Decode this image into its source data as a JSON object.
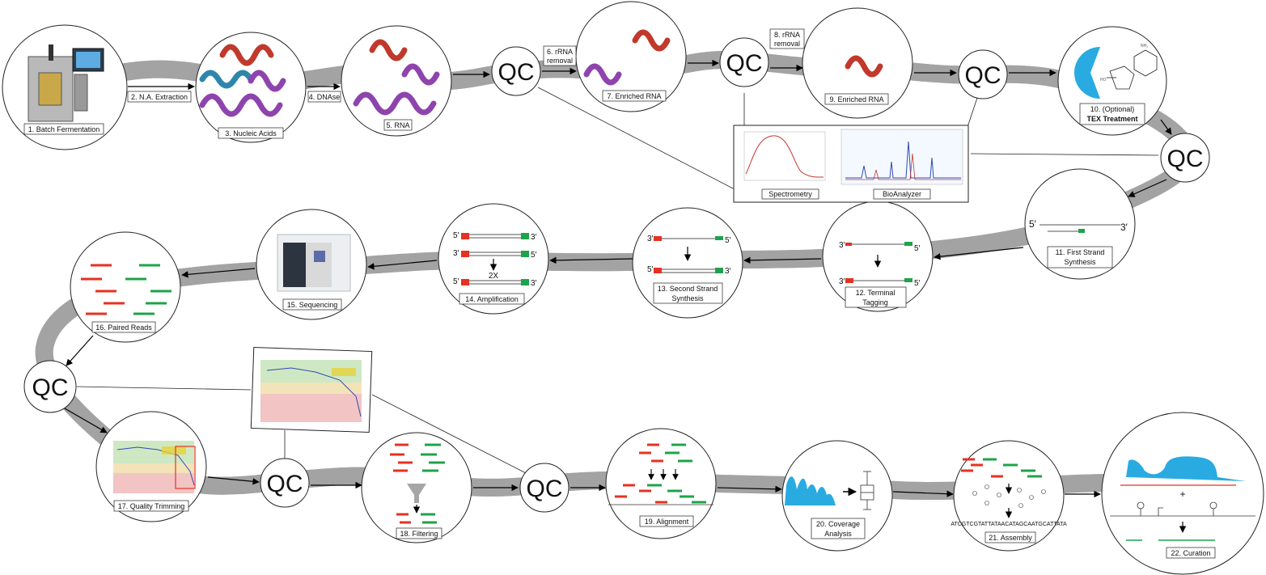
{
  "steps": {
    "s1": "1. Batch Fermentation",
    "s2": "2. N.A. Extraction",
    "s3": "3. Nucleic Acids",
    "s4": "4. DNAse",
    "s5": "5. RNA",
    "s6a": "6. rRNA",
    "s6b": "removal",
    "s7": "7. Enriched RNA",
    "s8a": "8. rRNA",
    "s8b": "removal",
    "s9": "9. Enriched RNA",
    "s10a": "10. (Optional)",
    "s10b": "TEX Treatment",
    "s11a": "11. First Strand",
    "s11b": "Synthesis",
    "s12a": "12. Terminal",
    "s12b": "Tagging",
    "s13a": "13. Second Strand",
    "s13b": "Synthesis",
    "s14": "14. Amplification",
    "s15": "15. Sequencing",
    "s16": "16. Paired Reads",
    "s17": "17. Quality Trimming",
    "s18": "18. Filtering",
    "s19": "19. Alignment",
    "s20a": "20. Coverage",
    "s20b": "Analysis",
    "s21": "21. Assembly",
    "s22": "22. Curation"
  },
  "qc_label": "QC",
  "insets": {
    "spectrometry": "Spectrometry",
    "bioanalyzer": "BioAnalyzer"
  },
  "primes": {
    "five": "5′",
    "three": "3′"
  },
  "amplification_factor": "2X",
  "assembly_sequence": "ATCGTCGTATTATAACATAGCAATGCATTATA",
  "curation_plus": "+",
  "colors": {
    "red_strand": "#e53222",
    "green_strand": "#1ea34a",
    "blue_fill": "#29abe2",
    "purple_helix": "#8e44ad",
    "red_helix": "#c0392b",
    "track_gray": "#9a9a9a"
  }
}
